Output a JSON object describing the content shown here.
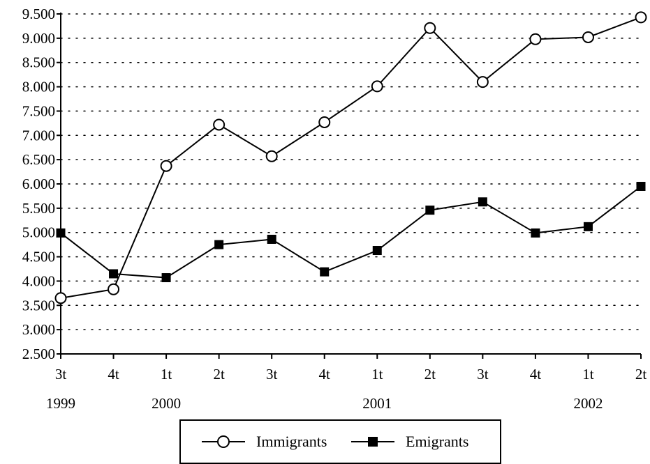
{
  "chart_data": {
    "type": "line",
    "categories": [
      "3t",
      "4t",
      "1t",
      "2t",
      "3t",
      "4t",
      "1t",
      "2t",
      "3t",
      "4t",
      "1t",
      "2t"
    ],
    "year_labels": [
      {
        "index": 0,
        "label": "1999"
      },
      {
        "index": 2,
        "label": "2000"
      },
      {
        "index": 6,
        "label": "2001"
      },
      {
        "index": 10,
        "label": "2002"
      }
    ],
    "y_ticks": [
      "2.500",
      "3.000",
      "3.500",
      "4.000",
      "4.500",
      "5.000",
      "5.500",
      "6.000",
      "6.500",
      "7.000",
      "7.500",
      "8.000",
      "8.500",
      "9.000",
      "9.500"
    ],
    "ylim": [
      2500,
      9500
    ],
    "grid": "horizontal dotted",
    "legend_position": "bottom",
    "series": [
      {
        "name": "Immigrants",
        "marker": "open-circle",
        "values": [
          3650,
          3830,
          6370,
          7220,
          6570,
          7270,
          8010,
          9210,
          8100,
          8980,
          9020,
          9430
        ]
      },
      {
        "name": "Emigrants",
        "marker": "filled-square",
        "values": [
          4990,
          4150,
          4070,
          4750,
          4860,
          4190,
          4630,
          5460,
          5630,
          4990,
          5120,
          5950
        ]
      }
    ]
  },
  "colors": {
    "line": "#000000",
    "background": "#ffffff"
  }
}
